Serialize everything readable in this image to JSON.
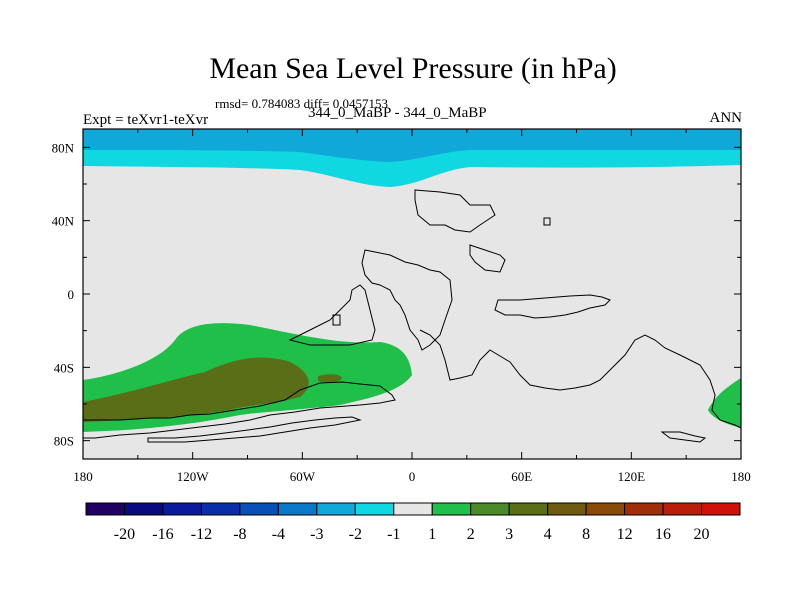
{
  "chart_data": {
    "type": "heatmap",
    "title": "Mean Sea Level Pressure (in hPa)",
    "stats_line": "rmsd= 0.784083 diff= 0.0457153",
    "left_label": "Expt = teXvr1-teXvr",
    "center_label": "344_0_MaBP - 344_0_MaBP",
    "right_label": "ANN",
    "x_ticks": [
      "180",
      "120W",
      "60W",
      "0",
      "60E",
      "120E",
      "180"
    ],
    "x_tick_values": [
      -180,
      -120,
      -60,
      0,
      60,
      120,
      180
    ],
    "y_ticks": [
      "80N",
      "40N",
      "0",
      "40S",
      "80S"
    ],
    "y_tick_values": [
      80,
      40,
      0,
      -40,
      -80
    ],
    "xlim": [
      -180,
      180
    ],
    "ylim": [
      -90,
      90
    ],
    "colorbar_labels": [
      "-20",
      "-16",
      "-12",
      "-8",
      "-4",
      "-3",
      "-2",
      "-1",
      "1",
      "2",
      "3",
      "4",
      "8",
      "12",
      "16",
      "20"
    ],
    "colorbar_colors": [
      "#200060",
      "#0a0a80",
      "#0a1a9a",
      "#0a2eaa",
      "#0850b8",
      "#0a78c8",
      "#10a8d8",
      "#10d8e0",
      "#e6e6e6",
      "#1fbf4a",
      "#4a8a28",
      "#5a6e18",
      "#6e5a10",
      "#8a4a0a",
      "#a02e0a",
      "#b81e0a",
      "#d0100a"
    ]
  }
}
